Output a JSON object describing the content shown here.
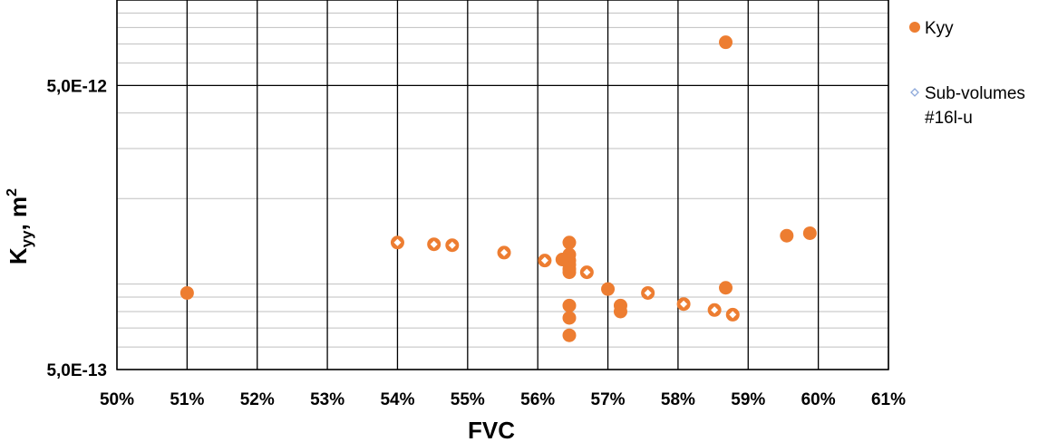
{
  "chart_data": {
    "type": "scatter",
    "title": "",
    "xlabel": "FVC",
    "ylabel": {
      "main": "K",
      "sub": "yy",
      "unit": ", m",
      "sup": "2"
    },
    "x_scale": "linear",
    "xlim": [
      0.5,
      0.61
    ],
    "x_ticks": [
      0.5,
      0.51,
      0.52,
      0.53,
      0.54,
      0.55,
      0.56,
      0.57,
      0.58,
      0.59,
      0.6,
      0.61
    ],
    "x_tick_labels": [
      "50%",
      "51%",
      "52%",
      "53%",
      "54%",
      "55%",
      "56%",
      "57%",
      "58%",
      "59%",
      "60%",
      "61%"
    ],
    "y_scale": "log",
    "ylim": [
      5e-13,
      1e-11
    ],
    "y_ticks": [
      5e-13,
      5e-12
    ],
    "y_tick_labels": [
      "5,0E-13",
      "5,0E-12"
    ],
    "grid": true,
    "legend_position": "right",
    "series": [
      {
        "name": "Kyy",
        "marker": "filled-circle",
        "color": "#ED7D31",
        "points": [
          [
            0.51,
            9.3e-13
          ],
          [
            0.5645,
            1.4e-12
          ],
          [
            0.5645,
            1.27e-12
          ],
          [
            0.5645,
            1.21e-12
          ],
          [
            0.5645,
            1.17e-12
          ],
          [
            0.5645,
            1.13e-12
          ],
          [
            0.5645,
            1.1e-12
          ],
          [
            0.5635,
            1.22e-12
          ],
          [
            0.5645,
            8.4e-13
          ],
          [
            0.5645,
            7.6e-13
          ],
          [
            0.5645,
            6.6e-13
          ],
          [
            0.57,
            9.6e-13
          ],
          [
            0.5718,
            8.4e-13
          ],
          [
            0.5718,
            8e-13
          ],
          [
            0.5868,
            9.7e-13
          ],
          [
            0.5955,
            1.48e-12
          ],
          [
            0.5988,
            1.51e-12
          ],
          [
            0.5868,
            7.1e-12
          ]
        ]
      },
      {
        "name": "Sub-volumes #16l-u",
        "legend_lines": [
          "Sub-volumes",
          "#16l-u"
        ],
        "marker": "hollow-diamond",
        "color": "#ED7D31",
        "legend_color": "#8EA9DB",
        "points": [
          [
            0.54,
            1.4e-12
          ],
          [
            0.5452,
            1.38e-12
          ],
          [
            0.5478,
            1.37e-12
          ],
          [
            0.5552,
            1.29e-12
          ],
          [
            0.561,
            1.21e-12
          ],
          [
            0.567,
            1.1e-12
          ],
          [
            0.5757,
            9.3e-13
          ],
          [
            0.5808,
            8.5e-13
          ],
          [
            0.5852,
            8.1e-13
          ],
          [
            0.5878,
            7.8e-13
          ]
        ]
      }
    ]
  }
}
